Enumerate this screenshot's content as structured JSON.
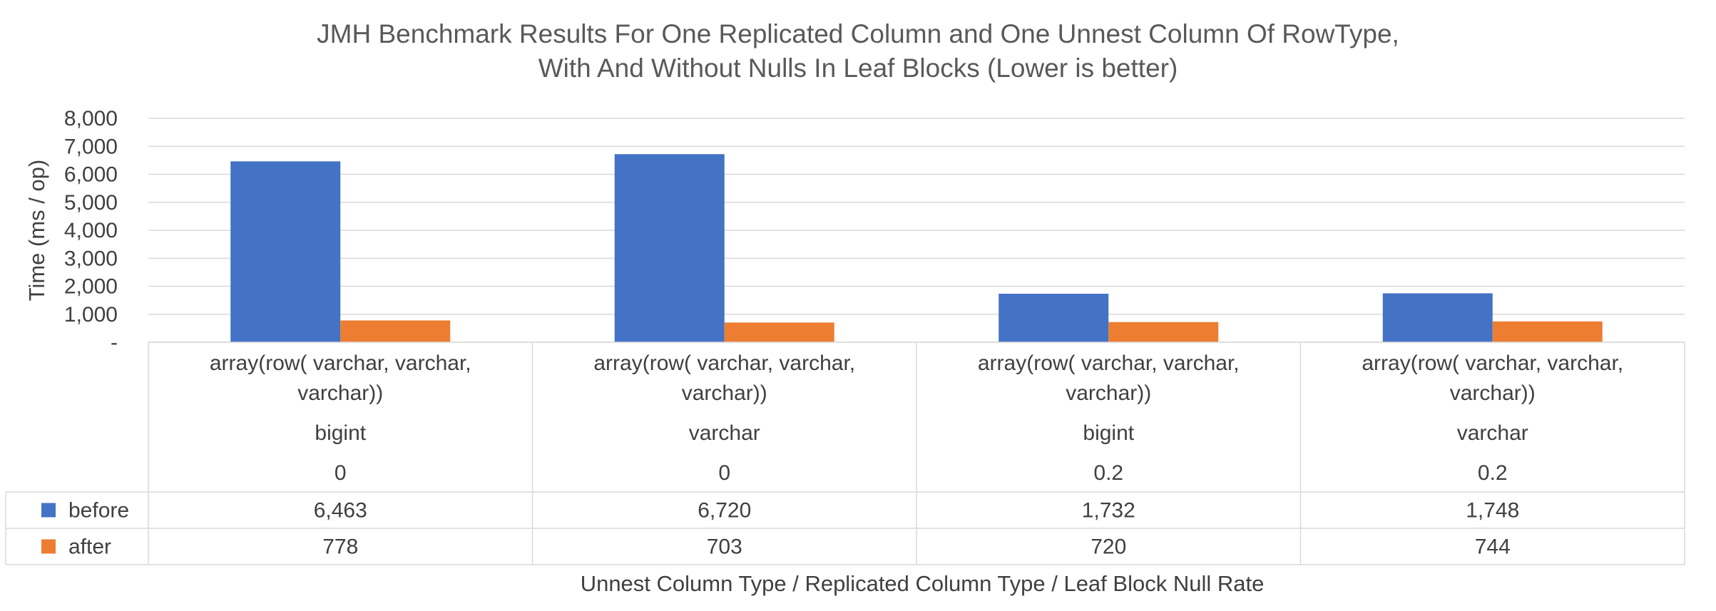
{
  "chart_data": {
    "type": "bar",
    "title_lines": [
      "JMH Benchmark Results For One Replicated Column and One Unnest Column Of RowType,",
      "With And Without Nulls In Leaf Blocks (Lower is better)"
    ],
    "ylabel": "Time (ms / op)",
    "xlabel": "Unnest Column Type /  Replicated Column Type / Leaf Block Null Rate",
    "ylim": [
      0,
      8000
    ],
    "y_ticks": [
      "-",
      "1,000",
      "2,000",
      "3,000",
      "4,000",
      "5,000",
      "6,000",
      "7,000",
      "8,000"
    ],
    "grid": true,
    "legend": "data-table",
    "categories": [
      {
        "line1": "array(row( varchar, varchar,",
        "line2": "varchar))",
        "replicated": "bigint",
        "null_rate": "0"
      },
      {
        "line1": "array(row( varchar, varchar,",
        "line2": "varchar))",
        "replicated": "varchar",
        "null_rate": "0"
      },
      {
        "line1": "array(row( varchar, varchar,",
        "line2": "varchar))",
        "replicated": "bigint",
        "null_rate": "0.2"
      },
      {
        "line1": "array(row( varchar, varchar,",
        "line2": "varchar))",
        "replicated": "varchar",
        "null_rate": "0.2"
      }
    ],
    "series": [
      {
        "name": "before",
        "color": "#4472C4",
        "values": [
          6463,
          6720,
          1732,
          1748
        ],
        "labels": [
          "6,463",
          "6,720",
          "1,732",
          "1,748"
        ]
      },
      {
        "name": "after",
        "color": "#ED7D31",
        "values": [
          778,
          703,
          720,
          744
        ],
        "labels": [
          "778",
          "703",
          "720",
          "744"
        ]
      }
    ]
  }
}
